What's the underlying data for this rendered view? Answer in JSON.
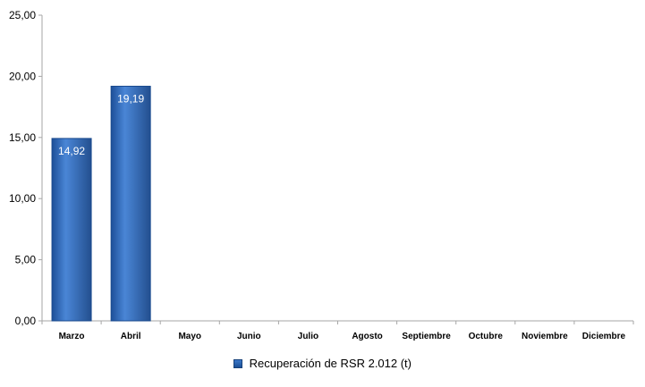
{
  "chart_data": {
    "type": "bar",
    "categories": [
      "Marzo",
      "Abril",
      "Mayo",
      "Junio",
      "Julio",
      "Agosto",
      "Septiembre",
      "Octubre",
      "Noviembre",
      "Diciembre"
    ],
    "series": [
      {
        "name": "Recuperación de RSR 2.012 (t)",
        "values": [
          14.92,
          19.19,
          null,
          null,
          null,
          null,
          null,
          null,
          null,
          null
        ]
      }
    ],
    "data_labels": [
      "14,92",
      "19,19",
      "",
      "",
      "",
      "",
      "",
      "",
      "",
      ""
    ],
    "y_ticks": [
      "0,00",
      "5,00",
      "10,00",
      "15,00",
      "20,00",
      "25,00"
    ],
    "ylim": [
      0,
      25
    ],
    "grid": false,
    "legend_position": "bottom",
    "colors": {
      "bar": "#2e66b8",
      "bar_light": "#4a86d6",
      "bar_dark": "#1a4a8e",
      "axis": "#a6a6a6",
      "data_label": "#ffffff"
    }
  }
}
